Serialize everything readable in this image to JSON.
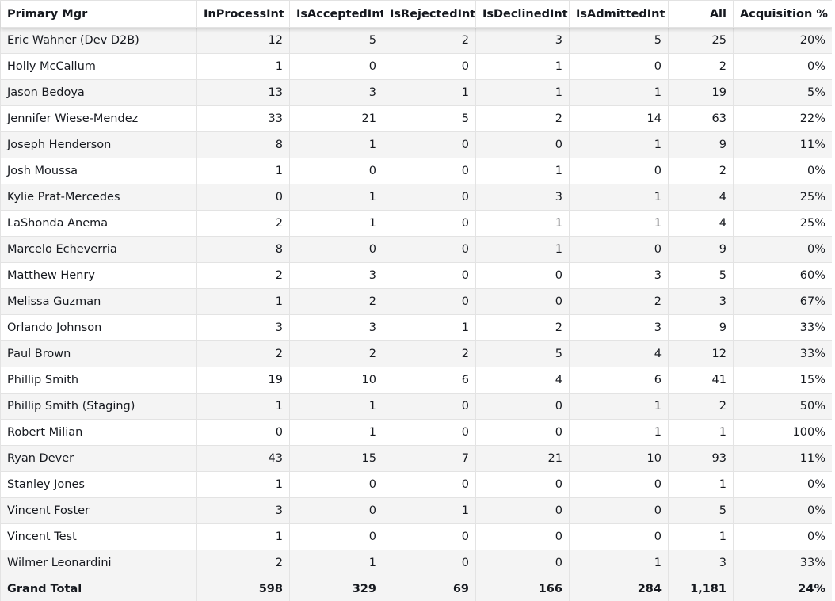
{
  "table": {
    "headers": [
      "Primary Mgr",
      "InProcessInt",
      "IsAcceptedInt",
      "IsRejectedInt",
      "IsDeclinedInt",
      "IsAdmittedInt",
      "All",
      "Acquisition %"
    ],
    "rows": [
      [
        "Eric Wahner (Dev D2B)",
        "12",
        "5",
        "2",
        "3",
        "5",
        "25",
        "20%"
      ],
      [
        "Holly McCallum",
        "1",
        "0",
        "0",
        "1",
        "0",
        "2",
        "0%"
      ],
      [
        "Jason Bedoya",
        "13",
        "3",
        "1",
        "1",
        "1",
        "19",
        "5%"
      ],
      [
        "Jennifer Wiese-Mendez",
        "33",
        "21",
        "5",
        "2",
        "14",
        "63",
        "22%"
      ],
      [
        "Joseph Henderson",
        "8",
        "1",
        "0",
        "0",
        "1",
        "9",
        "11%"
      ],
      [
        "Josh Moussa",
        "1",
        "0",
        "0",
        "1",
        "0",
        "2",
        "0%"
      ],
      [
        "Kylie Prat-Mercedes",
        "0",
        "1",
        "0",
        "3",
        "1",
        "4",
        "25%"
      ],
      [
        "LaShonda Anema",
        "2",
        "1",
        "0",
        "1",
        "1",
        "4",
        "25%"
      ],
      [
        "Marcelo Echeverria",
        "8",
        "0",
        "0",
        "1",
        "0",
        "9",
        "0%"
      ],
      [
        "Matthew Henry",
        "2",
        "3",
        "0",
        "0",
        "3",
        "5",
        "60%"
      ],
      [
        "Melissa Guzman",
        "1",
        "2",
        "0",
        "0",
        "2",
        "3",
        "67%"
      ],
      [
        "Orlando Johnson",
        "3",
        "3",
        "1",
        "2",
        "3",
        "9",
        "33%"
      ],
      [
        "Paul Brown",
        "2",
        "2",
        "2",
        "5",
        "4",
        "12",
        "33%"
      ],
      [
        "Phillip Smith",
        "19",
        "10",
        "6",
        "4",
        "6",
        "41",
        "15%"
      ],
      [
        "Phillip Smith (Staging)",
        "1",
        "1",
        "0",
        "0",
        "1",
        "2",
        "50%"
      ],
      [
        "Robert Milian",
        "0",
        "1",
        "0",
        "0",
        "1",
        "1",
        "100%"
      ],
      [
        "Ryan Dever",
        "43",
        "15",
        "7",
        "21",
        "10",
        "93",
        "11%"
      ],
      [
        "Stanley Jones",
        "1",
        "0",
        "0",
        "0",
        "0",
        "1",
        "0%"
      ],
      [
        "Vincent Foster",
        "3",
        "0",
        "1",
        "0",
        "0",
        "5",
        "0%"
      ],
      [
        "Vincent Test",
        "1",
        "0",
        "0",
        "0",
        "0",
        "1",
        "0%"
      ],
      [
        "Wilmer Leonardini",
        "2",
        "1",
        "0",
        "0",
        "1",
        "3",
        "33%"
      ]
    ],
    "total": [
      "Grand Total",
      "598",
      "329",
      "69",
      "166",
      "284",
      "1,181",
      "24%"
    ]
  }
}
